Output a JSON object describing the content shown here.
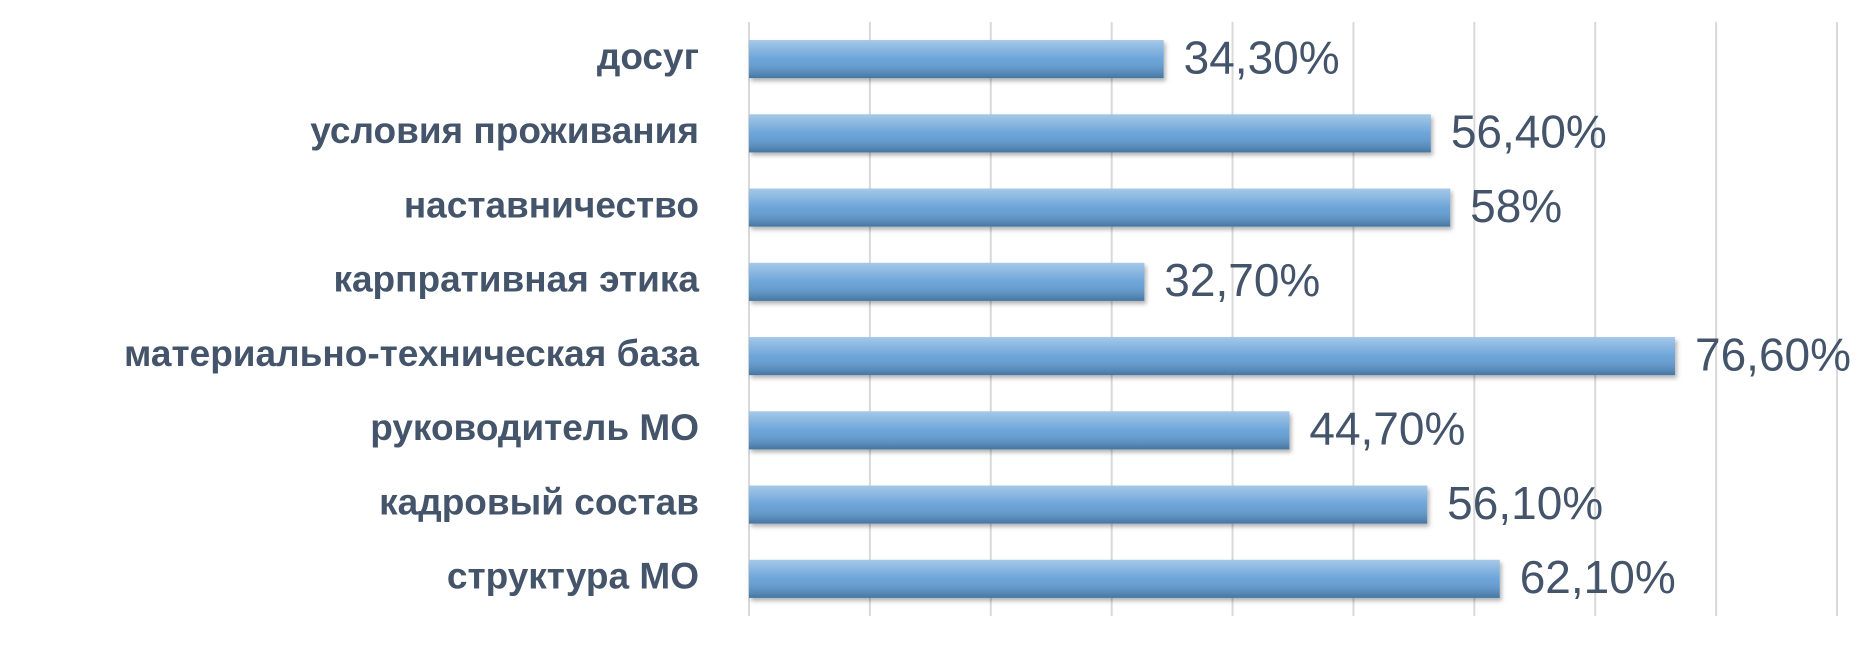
{
  "chart_data": {
    "type": "bar",
    "orientation": "horizontal",
    "categories": [
      "досуг",
      "условия проживания",
      "наставничество",
      "карпративная этика",
      "материально-техническая база",
      "руководитель МО",
      "кадровый состав",
      "структура МО"
    ],
    "values": [
      34.3,
      56.4,
      58,
      32.7,
      76.6,
      44.7,
      56.1,
      62.1
    ],
    "value_labels": [
      "34,30%",
      "56,40%",
      "58%",
      "32,70%",
      "76,60%",
      "44,70%",
      "56,10%",
      "62,10%"
    ],
    "color": "#5b9bd5",
    "xlim": [
      0,
      90
    ],
    "xticks": [
      0,
      10,
      20,
      30,
      40,
      50,
      60,
      70,
      80,
      90
    ],
    "grid": true
  }
}
